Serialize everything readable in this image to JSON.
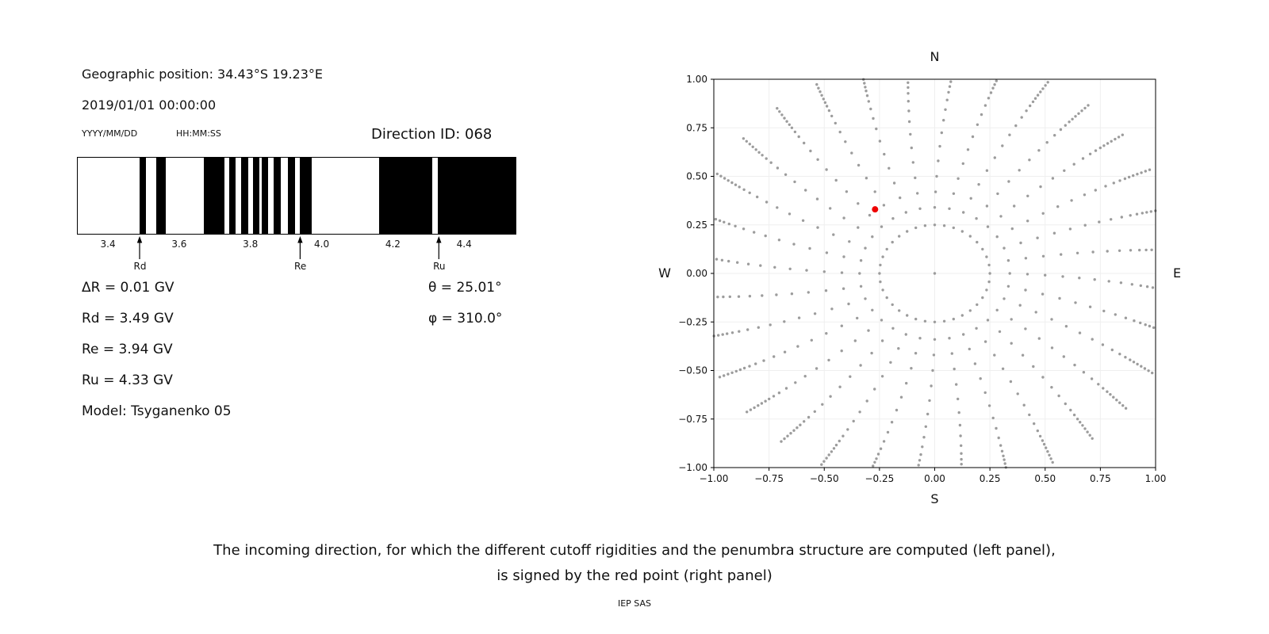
{
  "left_panel": {
    "geo_position": "Geographic position: 34.43°S 19.23°E",
    "datetime": "2019/01/01 00:00:00",
    "date_format_label": "YYYY/MM/DD",
    "time_format_label": "HH:MM:SS",
    "direction_id": "Direction ID: 068",
    "values": [
      "ΔR = 0.01 GV",
      "Rd = 3.49 GV",
      "Re = 3.94 GV",
      "Ru = 4.33 GV",
      "Model: Tsyganenko 05"
    ],
    "theta": "θ = 25.01°",
    "phi": "φ = 310.0°"
  },
  "chart_data": [
    {
      "type": "bar",
      "panel": "penumbra-structure",
      "xlim": [
        3.313,
        4.542
      ],
      "xticks": [
        3.4,
        3.6,
        3.8,
        4.0,
        4.2,
        4.4
      ],
      "xtick_labels": [
        "3.4",
        "3.6",
        "3.8",
        "4.0",
        "4.2",
        "4.4"
      ],
      "forbidden_bands_gv": [
        [
          3.487,
          3.504
        ],
        [
          3.533,
          3.56
        ],
        [
          3.667,
          3.724
        ],
        [
          3.738,
          3.756
        ],
        [
          3.771,
          3.791
        ],
        [
          3.804,
          3.822
        ],
        [
          3.829,
          3.847
        ],
        [
          3.864,
          3.882
        ],
        [
          3.902,
          3.924
        ],
        [
          3.936,
          3.969
        ],
        [
          4.16,
          4.309
        ],
        [
          4.324,
          4.542
        ]
      ],
      "arrows": [
        {
          "label": "Rd",
          "gv": 3.49
        },
        {
          "label": "Re",
          "gv": 3.94
        },
        {
          "label": "Ru",
          "gv": 4.33
        }
      ],
      "bar_color": "#000000",
      "background": "#ffffff"
    },
    {
      "type": "scatter",
      "panel": "incoming-directions",
      "xlim": [
        -1,
        1
      ],
      "ylim": [
        -1,
        1
      ],
      "xticks": [
        -1,
        -0.75,
        -0.5,
        -0.25,
        0,
        0.25,
        0.5,
        0.75,
        1
      ],
      "xtick_labels": [
        "−1.00",
        "−0.75",
        "−0.50",
        "−0.25",
        "0.00",
        "0.25",
        "0.50",
        "0.75",
        "1.00"
      ],
      "yticks": [
        1,
        0.75,
        0.5,
        0.25,
        0,
        -0.25,
        -0.5,
        -0.75,
        -1
      ],
      "ytick_labels": [
        "1.00",
        "0.75",
        "0.50",
        "0.25",
        "0.00",
        "−0.25",
        "−0.50",
        "−0.75",
        "−1.00"
      ],
      "compass": {
        "top": "N",
        "bottom": "S",
        "left": "W",
        "right": "E"
      },
      "grid": true,
      "red_point": {
        "x": -0.27,
        "y": 0.33
      },
      "dot_color": "#9c9c9c",
      "red_color": "#ee0000",
      "gray_pattern": {
        "center_point": true,
        "inner_ring": {
          "radius": 0.25,
          "count": 36
        },
        "spokes": {
          "count": 32,
          "start_deg": 0,
          "step_deg": 11.25,
          "radii": [
            0.34,
            0.42,
            0.5,
            0.58,
            0.655,
            0.725,
            0.79,
            0.845,
            0.895,
            0.935,
            0.965,
            0.99,
            1.01,
            1.03,
            1.05,
            1.07,
            1.09,
            1.11
          ],
          "curvature_deg": 5
        }
      }
    }
  ],
  "caption": {
    "line1": "The incoming direction, for which the different cutoff rigidities and the penumbra structure are computed (left panel),",
    "line2": "is signed by the red point (right panel)",
    "credit": "IEP SAS"
  }
}
